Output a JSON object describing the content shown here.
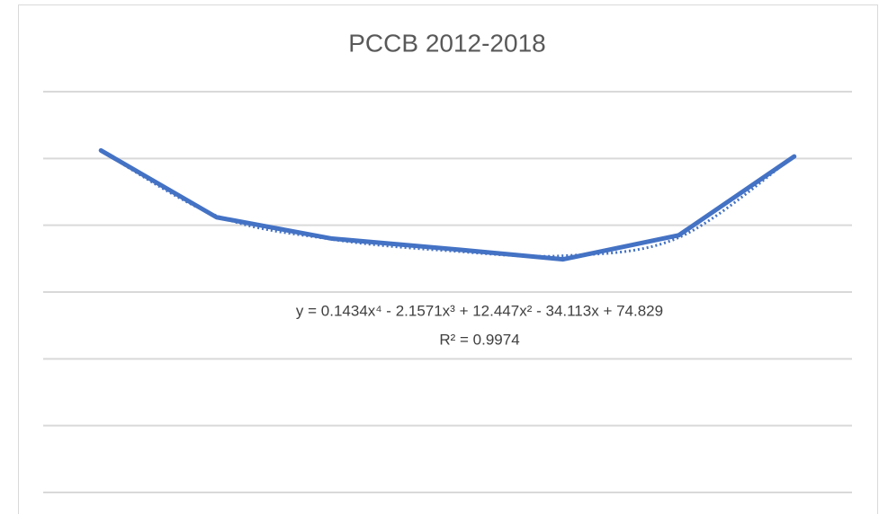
{
  "chart_data": {
    "type": "line",
    "title": "PCCB 2012-2018",
    "categories": [
      null,
      null,
      null,
      null,
      null,
      null,
      null
    ],
    "values": [
      51.2,
      41.2,
      38.0,
      36.5,
      34.9,
      38.5,
      50.3
    ],
    "color": "#4472c4",
    "ylim": [
      0,
      60
    ],
    "yticks": [
      0,
      10,
      20,
      30,
      40,
      50,
      60
    ],
    "grid": true,
    "trendline": {
      "type": "polynomial",
      "color": "#4472c4",
      "values": [
        51.15,
        41.43,
        37.89,
        36.19,
        35.43,
        38.16,
        50.35
      ],
      "equation": "y = 0.1434x⁴ - 2.1571x³ + 12.447x² - 34.113x + 74.829",
      "r_squared": "R² = 0.9974"
    }
  }
}
